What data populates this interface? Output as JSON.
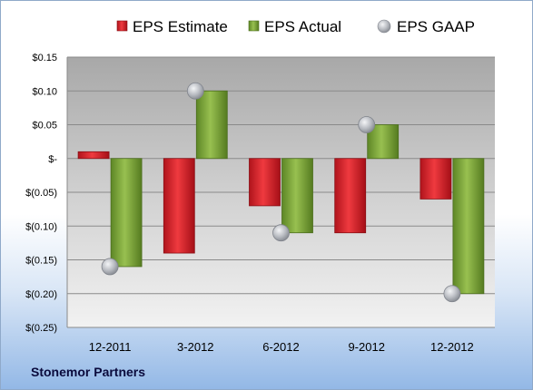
{
  "company": "Stonemor Partners",
  "colors": {
    "estimate": "#d9232b",
    "actual": "#7aa33a",
    "gaap": "#b5b9c0",
    "plot_bg": "#c8c8c8"
  },
  "chart_data": {
    "type": "bar",
    "categories": [
      "12-2011",
      "3-2012",
      "6-2012",
      "9-2012",
      "12-2012"
    ],
    "series": [
      {
        "name": "EPS Estimate",
        "kind": "bar",
        "values": [
          0.01,
          -0.14,
          -0.07,
          -0.11,
          -0.06
        ]
      },
      {
        "name": "EPS Actual",
        "kind": "bar",
        "values": [
          -0.16,
          0.1,
          -0.11,
          0.05,
          -0.2
        ]
      },
      {
        "name": "EPS GAAP",
        "kind": "marker",
        "values": [
          -0.16,
          0.1,
          -0.11,
          0.05,
          -0.2
        ]
      }
    ],
    "ylim": [
      -0.25,
      0.15
    ],
    "yticks": [
      0.15,
      0.1,
      0.05,
      0,
      -0.05,
      -0.1,
      -0.15,
      -0.2,
      -0.25
    ],
    "ytick_labels": [
      "$0.15",
      "$0.10",
      "$0.05",
      "$-",
      "$(0.05)",
      "$(0.10)",
      "$(0.15)",
      "$(0.20)",
      "$(0.25)"
    ],
    "grid": true,
    "legend": "top"
  }
}
